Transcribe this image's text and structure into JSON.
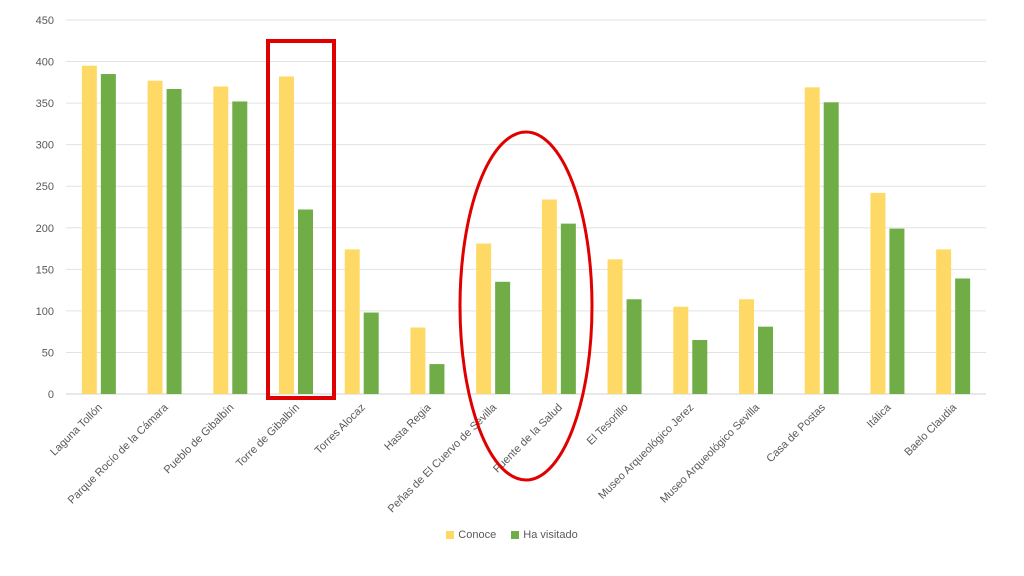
{
  "chart_data": {
    "type": "bar",
    "categories": [
      "Laguna Tollón",
      "Parque Rocío de la Cámara",
      "Pueblo de Gibalbín",
      "Torre de Gibalbín",
      "Torres Alocaz",
      "Hasta Regia",
      "Peñas de El Cuervo de Sevilla",
      "Fuente de la Salud",
      "El Tesorillo",
      "Museo Arqueológico Jerez",
      "Museo Arqueológico Sevilla",
      "Casa de Postas",
      "Itálica",
      "Baelo Claudia"
    ],
    "series": [
      {
        "name": "Conoce",
        "color": "#FFD966",
        "values": [
          395,
          377,
          370,
          382,
          174,
          80,
          181,
          234,
          162,
          105,
          114,
          369,
          242,
          174
        ]
      },
      {
        "name": "Ha visitado",
        "color": "#70AD47",
        "values": [
          385,
          367,
          352,
          222,
          98,
          36,
          135,
          205,
          114,
          65,
          81,
          351,
          199,
          139
        ]
      }
    ],
    "ylim": [
      0,
      450
    ],
    "yticks": [
      0,
      50,
      100,
      150,
      200,
      250,
      300,
      350,
      400,
      450
    ],
    "grid": true,
    "legend_position": "bottom",
    "annotations": [
      {
        "shape": "rectangle",
        "color": "#E00000",
        "target": "Torre de Gibalbín"
      },
      {
        "shape": "ellipse",
        "color": "#E00000",
        "target": [
          "Peñas de El Cuervo de Sevilla",
          "Fuente de la Salud"
        ]
      }
    ]
  }
}
